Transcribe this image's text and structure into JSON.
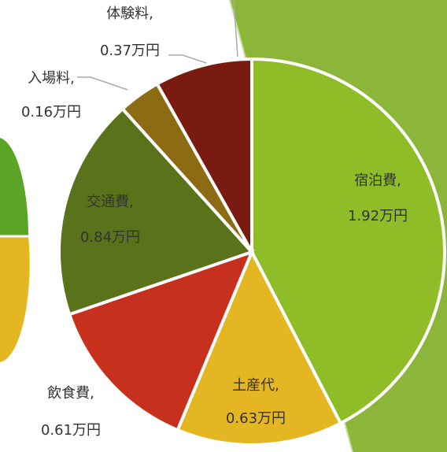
{
  "chart_data": {
    "type": "pie",
    "categories": [
      "宿泊費,",
      "土産代,",
      "飲食費,",
      "交通費,",
      "入場料,",
      "体験料,"
    ],
    "values": [
      1.92,
      0.63,
      0.61,
      0.84,
      0.16,
      0.37
    ],
    "value_labels": [
      "1.92万円",
      "0.63万円",
      "0.61万円",
      "0.84万円",
      "0.16万円",
      "0.37万円"
    ],
    "colors": [
      "#8fbd27",
      "#e3b622",
      "#c6301c",
      "#5a731a",
      "#8c6b12",
      "#7a1b12"
    ]
  }
}
